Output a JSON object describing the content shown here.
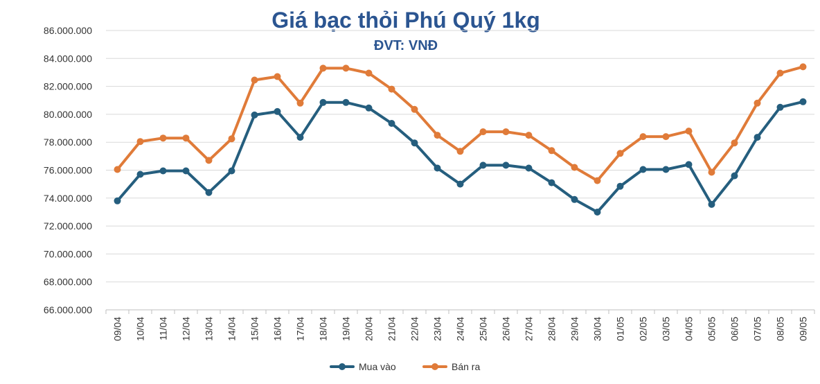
{
  "chart_data": {
    "type": "line",
    "title": "Giá bạc thỏi Phú Quý 1kg",
    "subtitle": "ĐVT: VNĐ",
    "categories": [
      "09/04",
      "10/04",
      "11/04",
      "12/04",
      "13/04",
      "14/04",
      "15/04",
      "16/04",
      "17/04",
      "18/04",
      "19/04",
      "20/04",
      "21/04",
      "22/04",
      "23/04",
      "24/04",
      "25/04",
      "26/04",
      "27/04",
      "28/04",
      "29/04",
      "30/04",
      "01/05",
      "02/05",
      "03/05",
      "04/05",
      "05/05",
      "06/05",
      "07/05",
      "08/05",
      "09/05"
    ],
    "ylim": [
      66000000,
      86000000
    ],
    "yticks": [
      "86.000.000",
      "84.000.000",
      "82.000.000",
      "80.000.000",
      "78.000.000",
      "76.000.000",
      "74.000.000",
      "72.000.000",
      "70.000.000",
      "68.000.000",
      "66.000.000"
    ],
    "ytick_values": [
      86000000,
      84000000,
      82000000,
      80000000,
      78000000,
      76000000,
      74000000,
      72000000,
      70000000,
      68000000,
      66000000
    ],
    "legend_position": "bottom",
    "series": [
      {
        "name": "Mua vào",
        "color": "#255e7e",
        "values": [
          73800000,
          75700000,
          75950000,
          75950000,
          74400000,
          75950000,
          79950000,
          80200000,
          78350000,
          80850000,
          80850000,
          80450000,
          79350000,
          77950000,
          76150000,
          75000000,
          76350000,
          76350000,
          76150000,
          75100000,
          73900000,
          73000000,
          74850000,
          76050000,
          76050000,
          76400000,
          73550000,
          75600000,
          78350000,
          80500000,
          80900000
        ]
      },
      {
        "name": "Bán ra",
        "color": "#e07b39",
        "values": [
          76050000,
          78050000,
          78300000,
          78300000,
          76700000,
          78250000,
          82450000,
          82700000,
          80800000,
          83300000,
          83300000,
          82950000,
          81800000,
          80350000,
          78500000,
          77350000,
          78750000,
          78750000,
          78500000,
          77400000,
          76200000,
          75250000,
          77200000,
          78400000,
          78400000,
          78800000,
          75850000,
          77950000,
          80800000,
          82950000,
          83400000
        ]
      }
    ]
  }
}
